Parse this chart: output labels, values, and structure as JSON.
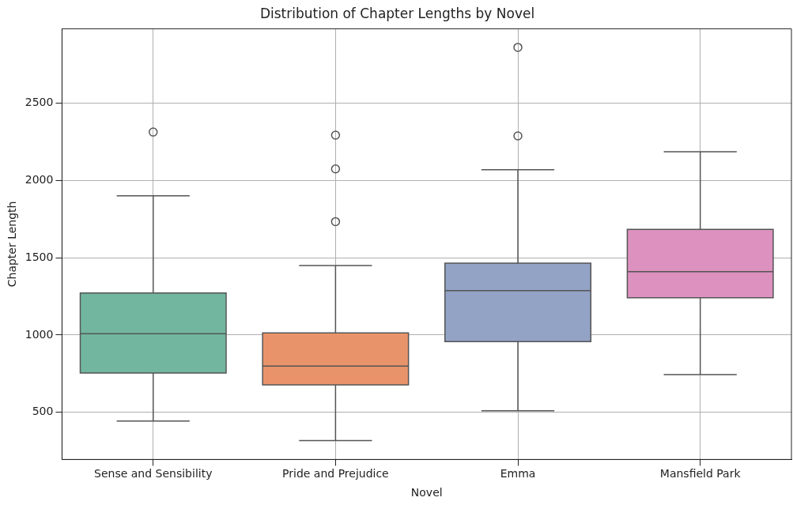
{
  "chart_data": {
    "type": "box",
    "title": "Distribution of Chapter Lengths by Novel",
    "xlabel": "Novel",
    "ylabel": "Chapter Length",
    "categories": [
      "Sense and Sensibility",
      "Pride and Prejudice",
      "Emma",
      "Mansfield Park"
    ],
    "colors": [
      "#72b69f",
      "#e9936a",
      "#93a3c5",
      "#dc91be"
    ],
    "boxes": [
      {
        "low": 444,
        "q1": 754,
        "median": 1008,
        "q3": 1272,
        "high": 1900,
        "outliers": [
          2312
        ]
      },
      {
        "low": 317,
        "q1": 678,
        "median": 799,
        "q3": 1013,
        "high": 1449,
        "outliers": [
          1733,
          2074,
          2292
        ]
      },
      {
        "low": 510,
        "q1": 957,
        "median": 1287,
        "q3": 1464,
        "high": 2068,
        "outliers": [
          2287,
          2860
        ]
      },
      {
        "low": 744,
        "q1": 1241,
        "median": 1409,
        "q3": 1683,
        "high": 2185
      }
    ],
    "ylim": [
      195,
      2980
    ],
    "yticks": [
      500,
      1000,
      1500,
      2000,
      2500
    ],
    "grid": true,
    "legend": false
  }
}
